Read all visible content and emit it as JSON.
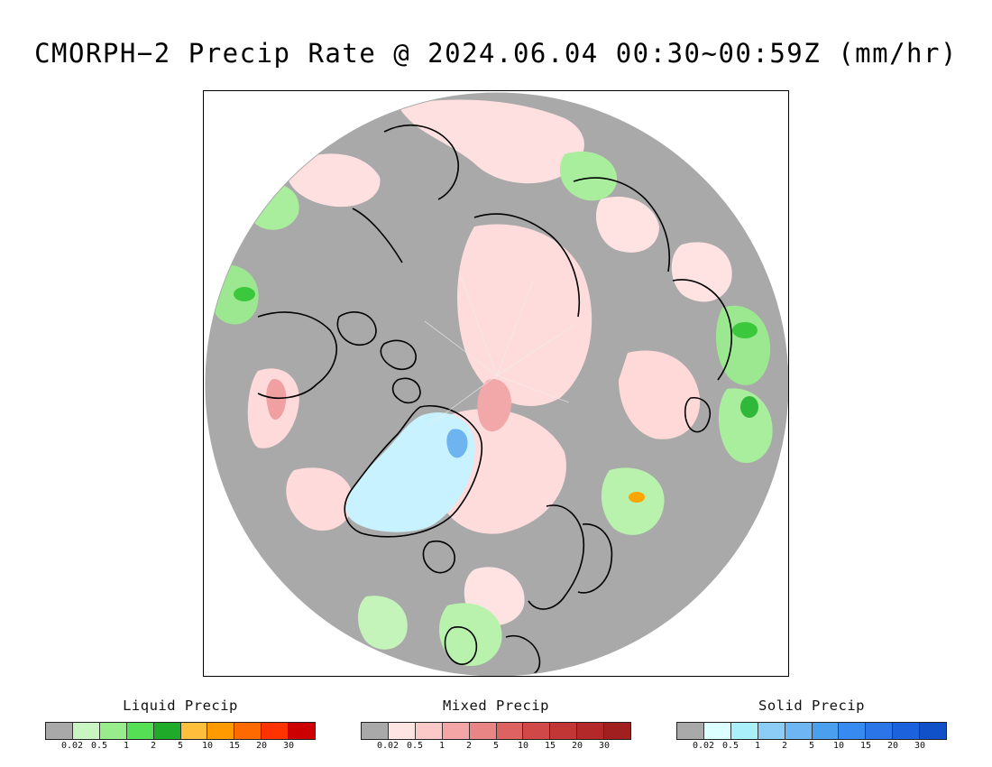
{
  "title": "CMORPH−2 Precip Rate @ 2024.06.04 00:30~00:59Z (mm/hr)",
  "map": {
    "projection": "north-polar-stereographic",
    "no_precip_color": "#a9a9a9",
    "coastline_color": "#000000"
  },
  "legends": [
    {
      "id": "liquid",
      "label": "Liquid Precip",
      "colors": [
        "#a9a9a9",
        "#c8f5c0",
        "#98ec8c",
        "#55df55",
        "#1faa2a",
        "#ffbe3c",
        "#ff9b00",
        "#ff6a00",
        "#ff3300",
        "#cc0000"
      ],
      "ticks": [
        "0.02",
        "0.5",
        "1",
        "2",
        "5",
        "10",
        "15",
        "20",
        "30"
      ]
    },
    {
      "id": "mixed",
      "label": "Mixed Precip",
      "colors": [
        "#a9a9a9",
        "#ffe4e4",
        "#fcc8c8",
        "#f4a6a6",
        "#ea8585",
        "#de6262",
        "#d14848",
        "#c33636",
        "#b32828",
        "#a21f1f"
      ],
      "ticks": [
        "0.02",
        "0.5",
        "1",
        "2",
        "5",
        "10",
        "15",
        "20",
        "30"
      ]
    },
    {
      "id": "solid",
      "label": "Solid Precip",
      "colors": [
        "#a9a9a9",
        "#dcffff",
        "#aaf0fa",
        "#8ccdf8",
        "#6eb6f3",
        "#4aa0ee",
        "#368af0",
        "#2a76e8",
        "#1c62dc",
        "#1050c8"
      ],
      "ticks": [
        "0.02",
        "0.5",
        "1",
        "2",
        "5",
        "10",
        "15",
        "20",
        "30"
      ]
    }
  ]
}
